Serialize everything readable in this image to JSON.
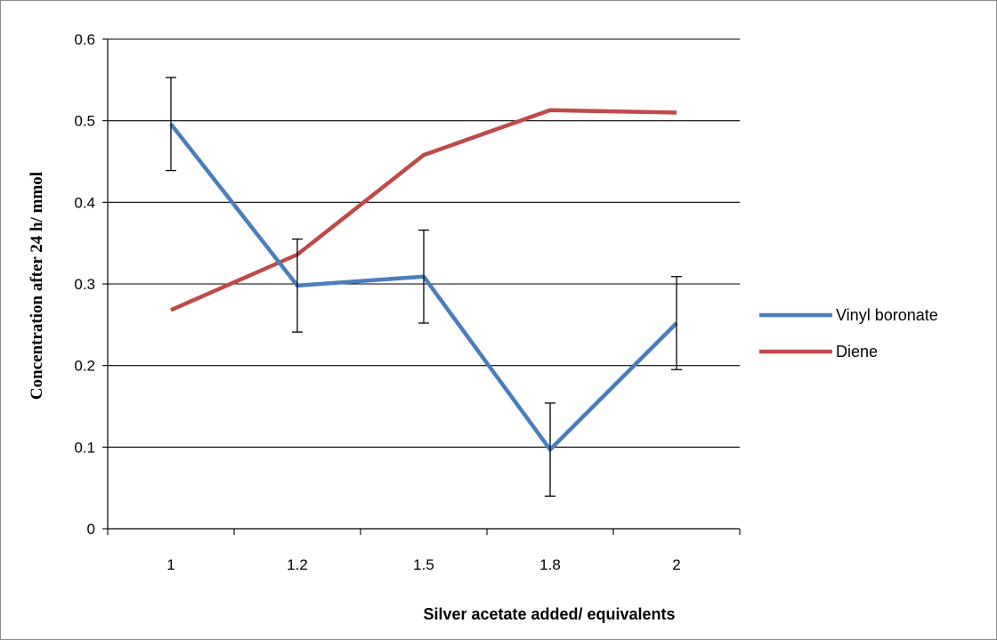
{
  "chart_data": {
    "type": "line",
    "categories": [
      "1",
      "1.2",
      "1.5",
      "1.8",
      "2"
    ],
    "xlabel": "Silver acetate added/ equivalents",
    "ylabel": "Concentration after 24 h/ mmol",
    "ylim": [
      0,
      0.6
    ],
    "yticks": [
      "0",
      "0.1",
      "0.2",
      "0.3",
      "0.4",
      "0.5",
      "0.6"
    ],
    "grid": true,
    "legend_position": "right",
    "series": [
      {
        "name": "Vinyl boronate",
        "color": "#4A7EBB",
        "values": [
          0.496,
          0.298,
          0.309,
          0.097,
          0.252
        ],
        "error": [
          0.057,
          0.057,
          0.057,
          0.057,
          0.057
        ]
      },
      {
        "name": "Diene",
        "color": "#BE4B48",
        "values": [
          0.268,
          0.336,
          0.458,
          0.513,
          0.51
        ]
      }
    ]
  }
}
